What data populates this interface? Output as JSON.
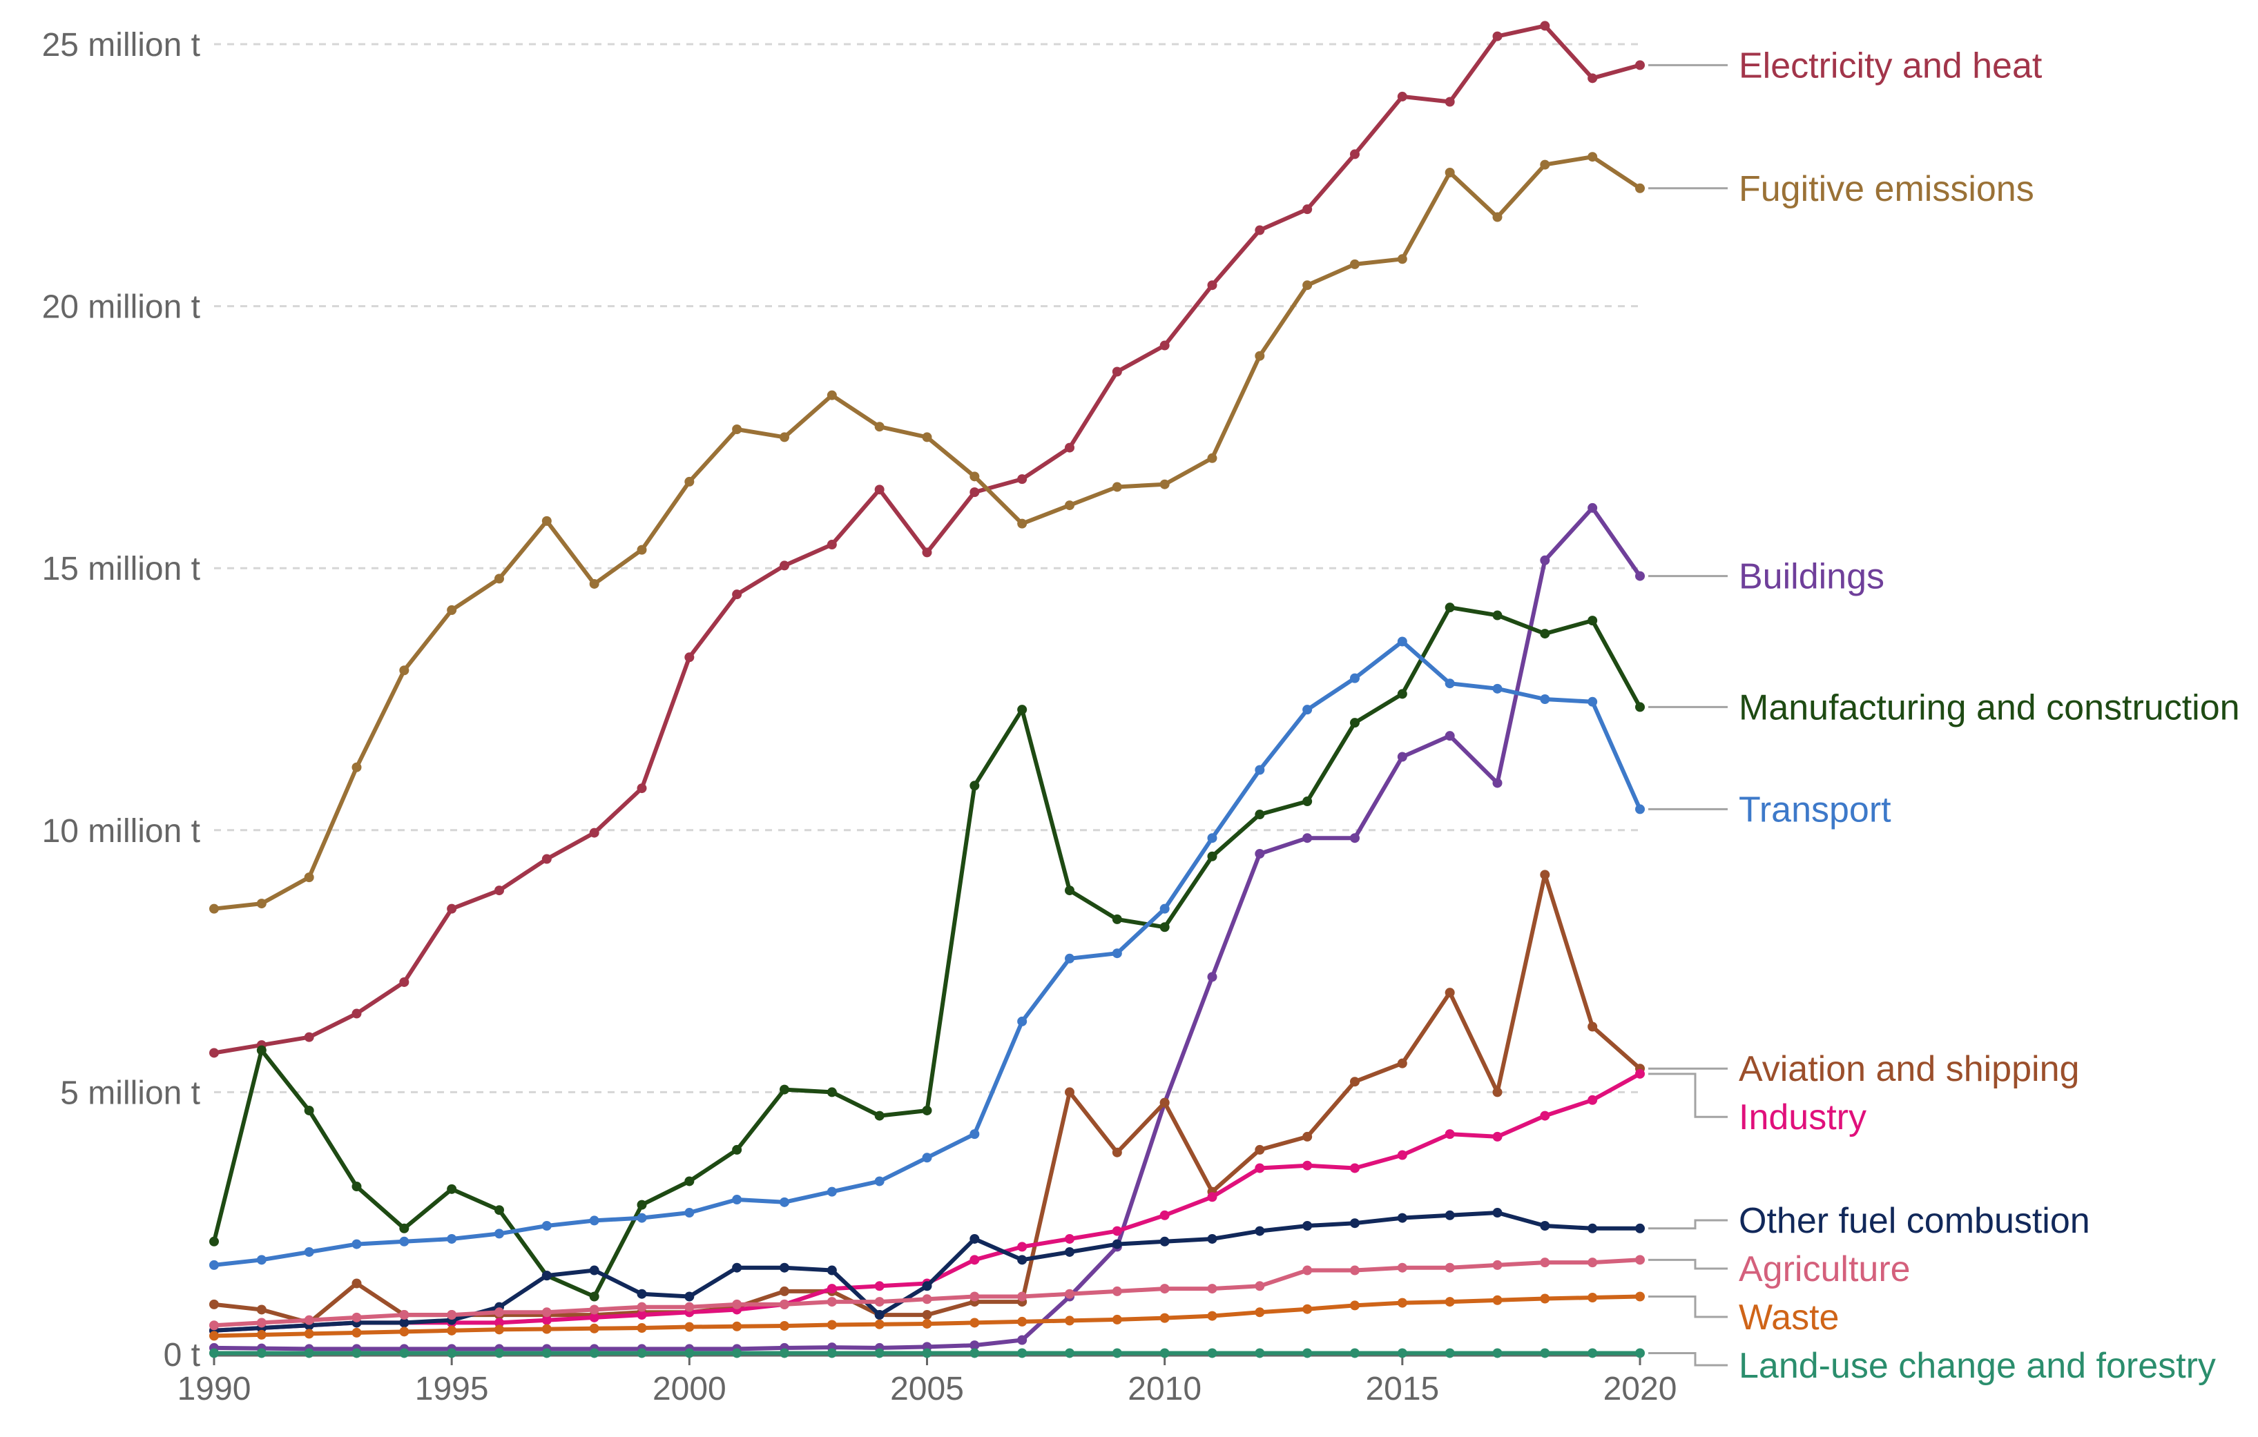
{
  "chart_data": {
    "type": "line",
    "title": "",
    "xlabel": "",
    "ylabel": "",
    "xlim": [
      1990,
      2020
    ],
    "ylim": [
      0,
      25000000
    ],
    "x_ticks": [
      {
        "value": 1990,
        "label": "1990"
      },
      {
        "value": 1995,
        "label": "1995"
      },
      {
        "value": 2000,
        "label": "2000"
      },
      {
        "value": 2005,
        "label": "2005"
      },
      {
        "value": 2010,
        "label": "2010"
      },
      {
        "value": 2015,
        "label": "2015"
      },
      {
        "value": 2020,
        "label": "2020"
      }
    ],
    "y_ticks": [
      {
        "value": 0,
        "label": "0 t"
      },
      {
        "value": 5000000,
        "label": "5 million t"
      },
      {
        "value": 10000000,
        "label": "10 million t"
      },
      {
        "value": 15000000,
        "label": "15 million t"
      },
      {
        "value": 20000000,
        "label": "20 million t"
      },
      {
        "value": 25000000,
        "label": "25 million t"
      }
    ],
    "grid": true,
    "x": [
      1990,
      1991,
      1992,
      1993,
      1994,
      1995,
      1996,
      1997,
      1998,
      1999,
      2000,
      2001,
      2002,
      2003,
      2004,
      2005,
      2006,
      2007,
      2008,
      2009,
      2010,
      2011,
      2012,
      2013,
      2014,
      2015,
      2016,
      2017,
      2018,
      2019,
      2020
    ],
    "series": [
      {
        "name": "Electricity and heat",
        "color": "#a2354a",
        "values": [
          5.75,
          5.9,
          6.05,
          6.5,
          7.1,
          8.5,
          8.85,
          9.45,
          9.95,
          10.8,
          13.3,
          14.5,
          15.05,
          15.45,
          16.5,
          15.3,
          16.45,
          16.7,
          17.3,
          18.75,
          19.25,
          20.4,
          21.45,
          21.85,
          22.9,
          24.0,
          23.9,
          25.15,
          25.35,
          24.35,
          24.6
        ]
      },
      {
        "name": "Fugitive emissions",
        "color": "#9a7136",
        "values": [
          8.5,
          8.6,
          9.1,
          11.2,
          13.05,
          14.2,
          14.8,
          15.9,
          14.7,
          15.35,
          16.65,
          17.65,
          17.5,
          18.3,
          17.7,
          17.5,
          16.75,
          15.85,
          16.2,
          16.55,
          16.6,
          17.1,
          19.05,
          20.4,
          20.8,
          20.9,
          22.55,
          21.7,
          22.7,
          22.85,
          22.25
        ]
      },
      {
        "name": "Buildings",
        "color": "#6f3f9a",
        "values": [
          0.12,
          0.11,
          0.1,
          0.1,
          0.1,
          0.1,
          0.1,
          0.1,
          0.1,
          0.1,
          0.1,
          0.1,
          0.12,
          0.13,
          0.12,
          0.14,
          0.17,
          0.27,
          1.1,
          2.05,
          4.8,
          7.2,
          9.55,
          9.85,
          9.85,
          11.4,
          11.8,
          10.9,
          15.15,
          16.15,
          14.85
        ]
      },
      {
        "name": "Manufacturing and construction",
        "color": "#1e4a13",
        "values": [
          2.15,
          5.8,
          4.65,
          3.2,
          2.4,
          3.15,
          2.75,
          1.5,
          1.1,
          2.85,
          3.3,
          3.9,
          5.05,
          5.0,
          4.55,
          4.65,
          10.85,
          12.3,
          8.85,
          8.3,
          8.15,
          9.5,
          10.3,
          10.55,
          12.05,
          12.6,
          14.25,
          14.1,
          13.75,
          14.0,
          12.35
        ]
      },
      {
        "name": "Transport",
        "color": "#3d79c9",
        "values": [
          1.7,
          1.8,
          1.95,
          2.1,
          2.15,
          2.2,
          2.3,
          2.45,
          2.55,
          2.6,
          2.7,
          2.95,
          2.9,
          3.1,
          3.3,
          3.75,
          4.2,
          6.35,
          7.55,
          7.65,
          8.5,
          9.85,
          11.15,
          12.3,
          12.9,
          13.6,
          12.8,
          12.7,
          12.5,
          12.45,
          10.4
        ]
      },
      {
        "name": "Aviation and shipping",
        "color": "#9b4f2b",
        "values": [
          0.95,
          0.85,
          0.6,
          1.35,
          0.75,
          0.75,
          0.75,
          0.75,
          0.75,
          0.8,
          0.8,
          0.9,
          1.2,
          1.2,
          0.75,
          0.75,
          1.0,
          1.0,
          5.0,
          3.85,
          4.8,
          3.1,
          3.9,
          4.15,
          5.2,
          5.55,
          6.9,
          5.0,
          9.15,
          6.25,
          5.45
        ]
      },
      {
        "name": "Industry",
        "color": "#e0107b",
        "values": [
          0.45,
          0.5,
          0.55,
          0.6,
          0.6,
          0.6,
          0.6,
          0.65,
          0.7,
          0.75,
          0.8,
          0.85,
          0.95,
          1.25,
          1.3,
          1.35,
          1.8,
          2.05,
          2.2,
          2.35,
          2.65,
          3.0,
          3.55,
          3.6,
          3.55,
          3.8,
          4.2,
          4.15,
          4.55,
          4.85,
          5.35
        ]
      },
      {
        "name": "Other fuel combustion",
        "color": "#11285a",
        "values": [
          0.45,
          0.5,
          0.55,
          0.6,
          0.6,
          0.65,
          0.9,
          1.5,
          1.6,
          1.15,
          1.1,
          1.65,
          1.65,
          1.6,
          0.75,
          1.3,
          2.2,
          1.8,
          1.95,
          2.1,
          2.15,
          2.2,
          2.35,
          2.45,
          2.5,
          2.6,
          2.65,
          2.7,
          2.45,
          2.4,
          2.4
        ]
      },
      {
        "name": "Agriculture",
        "color": "#d4607c",
        "values": [
          0.55,
          0.6,
          0.65,
          0.7,
          0.75,
          0.75,
          0.8,
          0.8,
          0.85,
          0.9,
          0.9,
          0.95,
          0.95,
          1.0,
          1.0,
          1.05,
          1.1,
          1.1,
          1.15,
          1.2,
          1.25,
          1.25,
          1.3,
          1.6,
          1.6,
          1.65,
          1.65,
          1.7,
          1.75,
          1.75,
          1.8
        ]
      },
      {
        "name": "Waste",
        "color": "#cf6418",
        "values": [
          0.35,
          0.37,
          0.39,
          0.41,
          0.43,
          0.45,
          0.47,
          0.48,
          0.49,
          0.5,
          0.52,
          0.53,
          0.54,
          0.56,
          0.57,
          0.58,
          0.6,
          0.62,
          0.64,
          0.66,
          0.69,
          0.73,
          0.8,
          0.86,
          0.93,
          0.98,
          1.0,
          1.03,
          1.06,
          1.08,
          1.1
        ]
      },
      {
        "name": "Land-use change and forestry",
        "color": "#2b8e6d",
        "values": [
          0.02,
          0.02,
          0.02,
          0.02,
          0.02,
          0.02,
          0.02,
          0.02,
          0.02,
          0.02,
          0.02,
          0.02,
          0.02,
          0.02,
          0.02,
          0.02,
          0.02,
          0.02,
          0.02,
          0.02,
          0.02,
          0.02,
          0.02,
          0.02,
          0.02,
          0.02,
          0.02,
          0.02,
          0.02,
          0.02,
          0.02
        ]
      }
    ],
    "value_units": "million t",
    "legend_placement": "inline-right"
  }
}
